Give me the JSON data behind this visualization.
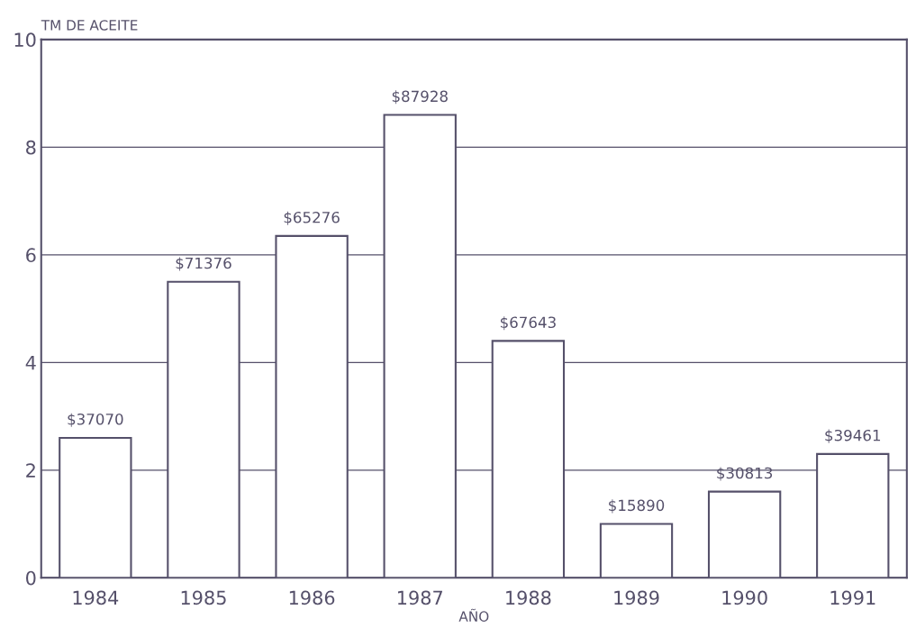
{
  "chart_data": {
    "type": "bar",
    "ylabel": "TM DE ACEITE",
    "xlabel": "AÑO",
    "categories": [
      "1984",
      "1985",
      "1986",
      "1987",
      "1988",
      "1989",
      "1990",
      "1991"
    ],
    "values": [
      2.6,
      5.5,
      6.35,
      8.6,
      4.4,
      1.0,
      1.6,
      2.3
    ],
    "annotations": [
      {
        "text": "$37070",
        "x": "1984",
        "y": 2.6
      },
      {
        "text": "$71376",
        "x": "1985",
        "y": 5.5
      },
      {
        "text": "$65276",
        "x": "1986",
        "y": 6.35
      },
      {
        "text": "$87928",
        "x": "1987",
        "y": 8.6
      },
      {
        "text": "$67643",
        "x": "1988",
        "y": 4.4
      },
      {
        "text": "$15890",
        "x": "1989",
        "y": 1.0
      },
      {
        "text": "$30813",
        "x": "1990",
        "y": 1.6
      },
      {
        "text": "$39461",
        "x": "1991",
        "y": 2.3
      }
    ],
    "color": "#ffffff",
    "ylim": [
      0,
      10
    ],
    "yticks": [
      0,
      2,
      4,
      6,
      8,
      10
    ],
    "grid": "y",
    "legend": false
  }
}
